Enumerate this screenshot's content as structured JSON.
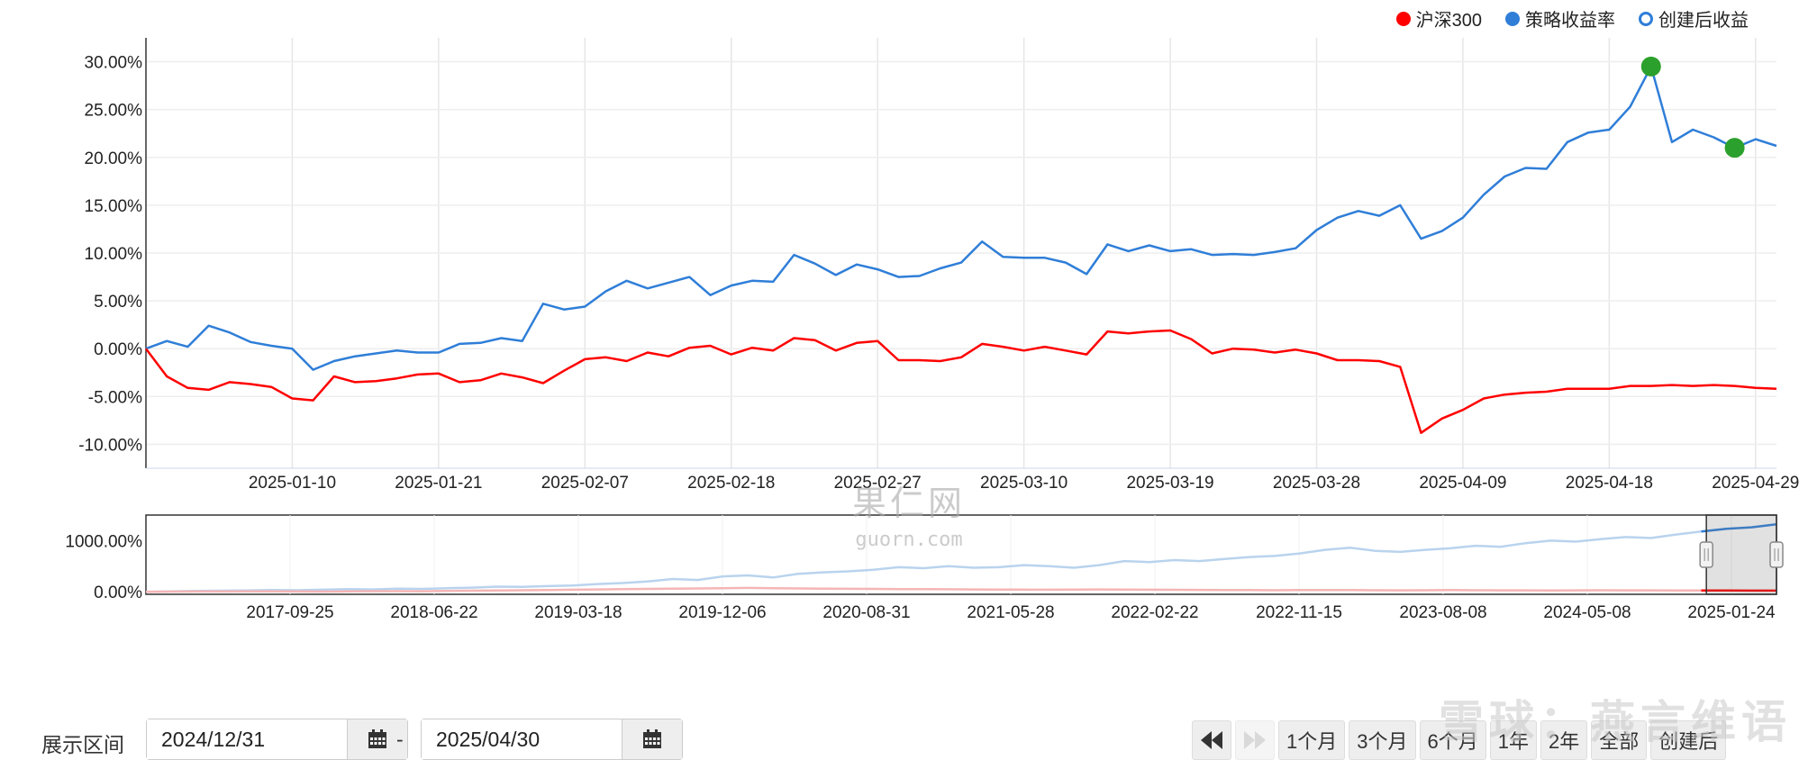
{
  "legend": [
    {
      "label": "沪深300",
      "color": "#ff0000",
      "style": "filled"
    },
    {
      "label": "策略收益率",
      "color": "#2f7ed8",
      "style": "filled"
    },
    {
      "label": "创建后收益",
      "color": "#2f7ed8",
      "style": "hollow"
    }
  ],
  "chart_data": [
    {
      "type": "line",
      "ylim": [
        -12.5,
        32.5
      ],
      "y_ticks": [
        "30.00%",
        "25.00%",
        "20.00%",
        "15.00%",
        "10.00%",
        "5.00%",
        "0.00%",
        "-5.00%",
        "-10.00%"
      ],
      "y_tick_values": [
        30,
        25,
        20,
        15,
        10,
        5,
        0,
        -5,
        -10
      ],
      "x_tick_labels": [
        "2025-01-10",
        "2025-01-21",
        "2025-02-07",
        "2025-02-18",
        "2025-02-27",
        "2025-03-10",
        "2025-03-19",
        "2025-03-28",
        "2025-04-09",
        "2025-04-18",
        "2025-04-29"
      ],
      "x_tick_index": [
        7,
        14,
        21,
        28,
        35,
        42,
        49,
        56,
        63,
        70,
        77
      ],
      "grid": "vertical",
      "series": [
        {
          "name": "策略收益率",
          "color": "#2f7ed8",
          "values": [
            0.0,
            0.8,
            0.2,
            2.4,
            1.7,
            0.7,
            0.3,
            0.0,
            -2.2,
            -1.3,
            -0.8,
            -0.5,
            -0.2,
            -0.4,
            -0.4,
            0.5,
            0.6,
            1.1,
            0.8,
            4.7,
            4.1,
            4.4,
            6.0,
            7.1,
            6.3,
            6.9,
            7.5,
            5.6,
            6.6,
            7.1,
            7.0,
            9.8,
            8.9,
            7.7,
            8.8,
            8.3,
            7.5,
            7.6,
            8.4,
            9.0,
            11.2,
            9.6,
            9.5,
            9.5,
            9.0,
            7.8,
            10.9,
            10.2,
            10.8,
            10.2,
            10.4,
            9.8,
            9.9,
            9.8,
            10.1,
            10.5,
            12.4,
            13.7,
            14.4,
            13.9,
            15.0,
            11.5,
            12.3,
            13.7,
            16.1,
            18.0,
            18.9,
            18.8,
            21.6,
            22.6,
            22.9,
            25.3,
            29.5,
            21.6,
            22.9,
            22.1,
            21.0,
            21.9,
            21.2
          ]
        },
        {
          "name": "沪深300",
          "color": "#ff0000",
          "values": [
            0.0,
            -2.9,
            -4.1,
            -4.3,
            -3.5,
            -3.7,
            -4.0,
            -5.2,
            -5.4,
            -2.9,
            -3.5,
            -3.4,
            -3.1,
            -2.7,
            -2.6,
            -3.5,
            -3.3,
            -2.6,
            -3.0,
            -3.6,
            -2.3,
            -1.1,
            -0.9,
            -1.3,
            -0.4,
            -0.8,
            0.1,
            0.3,
            -0.6,
            0.1,
            -0.2,
            1.1,
            0.9,
            -0.2,
            0.6,
            0.8,
            -1.2,
            -1.2,
            -1.3,
            -0.9,
            0.5,
            0.2,
            -0.2,
            0.2,
            -0.2,
            -0.6,
            1.8,
            1.6,
            1.8,
            1.9,
            1.0,
            -0.5,
            0.0,
            -0.1,
            -0.4,
            -0.1,
            -0.5,
            -1.2,
            -1.2,
            -1.3,
            -1.9,
            -8.8,
            -7.3,
            -6.4,
            -5.2,
            -4.8,
            -4.6,
            -4.5,
            -4.2,
            -4.2,
            -4.2,
            -3.9,
            -3.9,
            -3.8,
            -3.9,
            -3.8,
            -3.9,
            -4.1,
            -4.2
          ]
        }
      ],
      "markers": [
        {
          "series": "策略收益率",
          "index": 72,
          "color": "#2ca02c"
        },
        {
          "series": "策略收益率",
          "index": 76,
          "color": "#2ca02c"
        }
      ]
    },
    {
      "type": "line",
      "role": "navigator",
      "ylim": [
        -50,
        1500
      ],
      "y_ticks": [
        "1000.00%",
        "0.00%"
      ],
      "y_tick_values": [
        1000,
        0
      ],
      "x_tick_labels": [
        "2017-09-25",
        "2018-06-22",
        "2019-03-18",
        "2019-12-06",
        "2020-08-31",
        "2021-05-28",
        "2022-02-22",
        "2022-11-15",
        "2023-08-08",
        "2024-05-08",
        "2025-01-24"
      ],
      "selected_range": [
        "2024-12-31",
        "2025-04-30"
      ],
      "series": [
        {
          "name": "策略收益率",
          "color": "#2f7ed8",
          "values": [
            0,
            8,
            15,
            20,
            25,
            35,
            30,
            40,
            50,
            45,
            60,
            55,
            70,
            80,
            100,
            95,
            110,
            120,
            150,
            170,
            200,
            250,
            230,
            300,
            320,
            280,
            350,
            380,
            400,
            430,
            480,
            460,
            500,
            470,
            480,
            520,
            500,
            470,
            520,
            600,
            580,
            620,
            600,
            640,
            680,
            700,
            750,
            820,
            860,
            800,
            780,
            820,
            850,
            900,
            880,
            950,
            1000,
            980,
            1030,
            1070,
            1050,
            1120,
            1180,
            1230,
            1260,
            1320
          ]
        },
        {
          "name": "沪深300",
          "color": "#ff0000",
          "values": [
            0,
            3,
            5,
            4,
            6,
            8,
            5,
            3,
            6,
            10,
            12,
            10,
            15,
            20,
            25,
            30,
            35,
            40,
            45,
            50,
            55,
            60,
            65,
            70,
            75,
            70,
            65,
            60,
            58,
            55,
            52,
            50,
            48,
            45,
            43,
            42,
            40,
            42,
            45,
            43,
            40,
            38,
            36,
            35,
            33,
            30,
            32,
            35,
            33,
            30,
            28,
            30,
            32,
            30,
            28,
            27,
            25,
            28,
            30,
            28,
            27,
            26,
            25,
            24,
            23,
            22
          ]
        }
      ]
    }
  ],
  "watermarks": {
    "mid_line1": "果仁网",
    "mid_line2": "guorn.com",
    "bottom": "雪球：燕言维语"
  },
  "controls": {
    "range_label": "展示区间",
    "start_date": "2024/12/31",
    "end_date": "2025/04/30",
    "dash": "-",
    "buttons": [
      "1个月",
      "3个月",
      "6个月",
      "1年",
      "2年",
      "全部",
      "创建后"
    ]
  }
}
